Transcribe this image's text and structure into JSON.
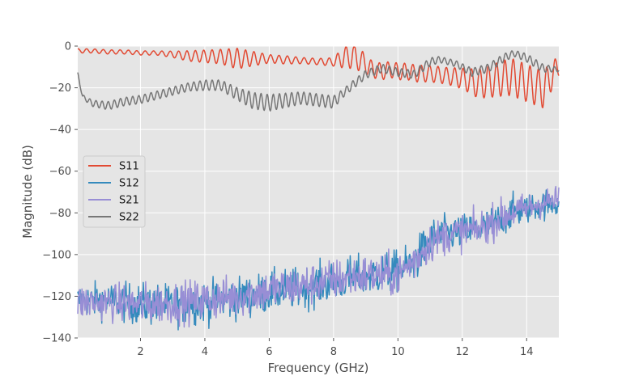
{
  "chart_data": {
    "type": "line",
    "title": "",
    "xlabel": "Frequency (GHz)",
    "ylabel": "Magnitude (dB)",
    "xlim": [
      0.05,
      15.0
    ],
    "ylim": [
      -140,
      0
    ],
    "xticks": [
      2,
      4,
      6,
      8,
      10,
      12,
      14
    ],
    "yticks": [
      0,
      -20,
      -40,
      -60,
      -80,
      -100,
      -120,
      -140
    ],
    "x_tick_labels": [
      "2",
      "4",
      "6",
      "8",
      "10",
      "12",
      "14"
    ],
    "y_tick_labels": [
      "0",
      "−20",
      "−40",
      "−60",
      "−80",
      "−100",
      "−120",
      "−140"
    ],
    "grid": true,
    "legend_position": "center-left",
    "series": [
      {
        "name": "S11",
        "color": "#E24A33",
        "x": [
          0.05,
          0.5,
          1,
          1.5,
          2,
          2.5,
          3,
          3.5,
          4,
          4.5,
          5,
          5.5,
          6,
          6.5,
          7,
          7.5,
          8,
          8.3,
          8.6,
          8.9,
          9.2,
          9.5,
          9.8,
          10,
          10.3,
          10.6,
          11,
          11.5,
          12,
          12.5,
          13,
          13.5,
          14,
          14.5,
          15
        ],
        "y": [
          -2,
          -2,
          -2.5,
          -2.5,
          -3,
          -3,
          -3.5,
          -4,
          -4,
          -4,
          -4.5,
          -5,
          -5.5,
          -6,
          -6.5,
          -7,
          -7,
          -4,
          -3,
          -6,
          -10,
          -11,
          -10,
          -11,
          -11,
          -12,
          -12,
          -13,
          -14,
          -16,
          -14,
          -12,
          -15,
          -18,
          -8
        ],
        "ripple": [
          1.0,
          1.0,
          1.0,
          1.0,
          1.0,
          1.0,
          1.5,
          2.5,
          3.0,
          3.5,
          5.0,
          3.5,
          2.0,
          2.0,
          1.5,
          1.5,
          2.0,
          5.0,
          6.0,
          5.0,
          4.0,
          4.0,
          4.0,
          4.0,
          4.0,
          4.0,
          4.0,
          4.0,
          5.0,
          7.0,
          8.0,
          9.0,
          9.0,
          9.0,
          5.0
        ]
      },
      {
        "name": "S12",
        "color": "#348ABD",
        "x": [
          0.05,
          1,
          2,
          3,
          4,
          5,
          6,
          7,
          8,
          8.5,
          9,
          9.5,
          10,
          10.5,
          11,
          11.5,
          12,
          12.5,
          13,
          13.5,
          14,
          14.5,
          15
        ],
        "y": [
          -122,
          -122,
          -124,
          -124,
          -123,
          -121,
          -118,
          -116,
          -113,
          -111,
          -110,
          -109,
          -108,
          -104,
          -93,
          -90,
          -89,
          -88,
          -85,
          -80,
          -78,
          -76,
          -75
        ],
        "noise": [
          6,
          6,
          7,
          7,
          7,
          7,
          7,
          7,
          7,
          7,
          7,
          7,
          7,
          7,
          7,
          6,
          6,
          6,
          6,
          6,
          5,
          5,
          5
        ]
      },
      {
        "name": "S21",
        "color": "#988ED5",
        "x": [
          0.05,
          1,
          2,
          3,
          4,
          5,
          6,
          7,
          8,
          8.5,
          9,
          9.5,
          10,
          10.5,
          11,
          11.5,
          12,
          12.5,
          13,
          13.5,
          14,
          14.5,
          15
        ],
        "y": [
          -123,
          -123,
          -124,
          -123,
          -122,
          -120,
          -117,
          -115,
          -112,
          -111,
          -110,
          -110,
          -110,
          -103,
          -94,
          -91,
          -89,
          -88,
          -84,
          -80,
          -78,
          -75,
          -74
        ],
        "noise": [
          6,
          6,
          7,
          7,
          7,
          7,
          7,
          7,
          7,
          7,
          7,
          7,
          7,
          7,
          7,
          6,
          6,
          6,
          6,
          6,
          5,
          5,
          5
        ]
      },
      {
        "name": "S22",
        "color": "#777777",
        "x": [
          0.05,
          0.2,
          0.5,
          1,
          1.5,
          2,
          2.5,
          3,
          3.5,
          4,
          4.5,
          5,
          5.5,
          6,
          6.5,
          7,
          7.5,
          8,
          8.3,
          8.6,
          9,
          9.5,
          10,
          10.5,
          11,
          11.3,
          11.8,
          12.3,
          12.8,
          13.3,
          13.6,
          14,
          14.5,
          15
        ],
        "y": [
          -13,
          -24,
          -27,
          -28,
          -26,
          -25,
          -23,
          -21,
          -19,
          -18,
          -18,
          -22,
          -25,
          -26,
          -25,
          -24,
          -25,
          -26,
          -22,
          -18,
          -13,
          -10,
          -12,
          -13,
          -7,
          -6,
          -8,
          -12,
          -10,
          -5,
          -3,
          -5,
          -10,
          -11
        ],
        "ripple": [
          0.5,
          1.0,
          1.5,
          2.0,
          2.0,
          2.0,
          2.0,
          2.0,
          2.0,
          2.5,
          2.5,
          3.0,
          4.0,
          4.0,
          3.5,
          3.0,
          3.0,
          3.0,
          2.0,
          2.0,
          2.0,
          2.0,
          2.0,
          2.0,
          2.0,
          1.5,
          1.5,
          2.0,
          2.0,
          2.0,
          1.5,
          2.0,
          2.0,
          1.0
        ]
      }
    ]
  }
}
